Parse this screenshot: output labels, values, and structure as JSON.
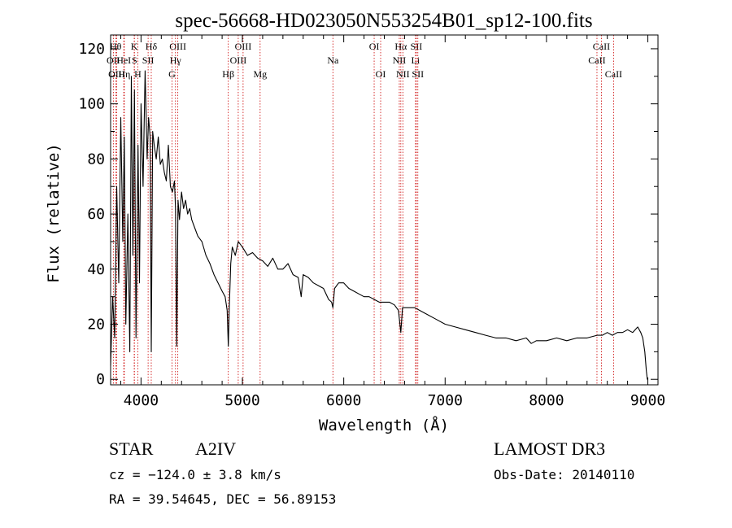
{
  "chart_data": {
    "type": "line",
    "title": "spec-56668-HD023050N553254B01_sp12-100.fits",
    "xlabel": "Wavelength (Å)",
    "ylabel": "Flux (relative)",
    "xlim": [
      3700,
      9100
    ],
    "ylim": [
      -2,
      125
    ],
    "xticks": [
      4000,
      5000,
      6000,
      7000,
      8000,
      9000
    ],
    "yticks": [
      0,
      20,
      40,
      60,
      80,
      100,
      120
    ],
    "grid": false,
    "series": [
      {
        "name": "flux",
        "color": "#000000",
        "x": [
          3700,
          3720,
          3740,
          3760,
          3780,
          3800,
          3820,
          3835,
          3850,
          3870,
          3889,
          3905,
          3920,
          3935,
          3950,
          3970,
          3985,
          4000,
          4020,
          4040,
          4060,
          4075,
          4090,
          4101,
          4115,
          4130,
          4150,
          4170,
          4190,
          4210,
          4230,
          4250,
          4270,
          4290,
          4310,
          4330,
          4340,
          4352,
          4365,
          4380,
          4400,
          4420,
          4440,
          4460,
          4480,
          4500,
          4530,
          4560,
          4600,
          4640,
          4680,
          4720,
          4760,
          4800,
          4830,
          4850,
          4861,
          4870,
          4885,
          4900,
          4930,
          4960,
          5000,
          5050,
          5100,
          5150,
          5200,
          5250,
          5300,
          5350,
          5400,
          5450,
          5500,
          5550,
          5580,
          5600,
          5650,
          5700,
          5750,
          5800,
          5850,
          5880,
          5893,
          5910,
          5950,
          6000,
          6050,
          6100,
          6150,
          6200,
          6250,
          6300,
          6350,
          6400,
          6450,
          6500,
          6540,
          6563,
          6580,
          6620,
          6700,
          6800,
          6900,
          7000,
          7100,
          7200,
          7300,
          7400,
          7500,
          7600,
          7700,
          7800,
          7850,
          7900,
          8000,
          8100,
          8200,
          8300,
          8400,
          8500,
          8550,
          8600,
          8650,
          8700,
          8750,
          8800,
          8850,
          8900,
          8930,
          8950,
          8970,
          8985,
          8995,
          9000
        ],
        "values": [
          5,
          30,
          15,
          70,
          35,
          95,
          50,
          88,
          20,
          60,
          10,
          110,
          45,
          105,
          15,
          85,
          35,
          100,
          70,
          112,
          80,
          95,
          88,
          10,
          90,
          85,
          80,
          88,
          78,
          80,
          75,
          72,
          85,
          70,
          68,
          72,
          62,
          12,
          65,
          58,
          68,
          62,
          65,
          60,
          62,
          58,
          55,
          52,
          50,
          45,
          42,
          38,
          35,
          32,
          30,
          25,
          12,
          25,
          42,
          48,
          45,
          50,
          48,
          45,
          46,
          44,
          43,
          41,
          44,
          40,
          40,
          42,
          38,
          37,
          30,
          38,
          37,
          35,
          34,
          33,
          29,
          28,
          26,
          33,
          35,
          35,
          33,
          32,
          31,
          30,
          30,
          29,
          28,
          28,
          28,
          27,
          25,
          17,
          26,
          26,
          26,
          24,
          22,
          20,
          19,
          18,
          17,
          16,
          15,
          15,
          14,
          15,
          13,
          14,
          14,
          15,
          14,
          15,
          15,
          16,
          16,
          17,
          16,
          17,
          17,
          18,
          17,
          19,
          17,
          15,
          10,
          3,
          0,
          0
        ]
      }
    ],
    "line_markers": [
      {
        "label": "OII",
        "x": 3727,
        "row": 2
      },
      {
        "label": "Hθ",
        "x": 3750,
        "row": 1
      },
      {
        "label": "OIII",
        "x": 3760,
        "row": 3
      },
      {
        "label": "HeI",
        "x": 3830,
        "row": 2
      },
      {
        "label": "Hη",
        "x": 3835,
        "row": 3
      },
      {
        "label": "K",
        "x": 3933,
        "row": 1
      },
      {
        "label": "S",
        "x": 3935,
        "row": 2
      },
      {
        "label": "H",
        "x": 3968,
        "row": 3
      },
      {
        "label": "Hδ",
        "x": 4101,
        "row": 1
      },
      {
        "label": "SII",
        "x": 4070,
        "row": 2
      },
      {
        "label": "OIII",
        "x": 4363,
        "row": 1
      },
      {
        "label": "Hγ",
        "x": 4340,
        "row": 2
      },
      {
        "label": "G",
        "x": 4305,
        "row": 3
      },
      {
        "label": "Hβ",
        "x": 4861,
        "row": 3
      },
      {
        "label": "OIII",
        "x": 5007,
        "row": 1
      },
      {
        "label": "OIII",
        "x": 4959,
        "row": 2
      },
      {
        "label": "Mg",
        "x": 5175,
        "row": 3
      },
      {
        "label": "Na",
        "x": 5893,
        "row": 2
      },
      {
        "label": "OI",
        "x": 6300,
        "row": 1
      },
      {
        "label": "OI",
        "x": 6364,
        "row": 3
      },
      {
        "label": "Hα",
        "x": 6563,
        "row": 1
      },
      {
        "label": "SII",
        "x": 6716,
        "row": 1
      },
      {
        "label": "NII",
        "x": 6548,
        "row": 2
      },
      {
        "label": "Li",
        "x": 6708,
        "row": 2
      },
      {
        "label": "NII",
        "x": 6583,
        "row": 3
      },
      {
        "label": "SII",
        "x": 6731,
        "row": 3
      },
      {
        "label": "CaII",
        "x": 8542,
        "row": 1
      },
      {
        "label": "CaII",
        "x": 8498,
        "row": 2
      },
      {
        "label": "CaII",
        "x": 8662,
        "row": 3
      }
    ],
    "marker_color": "#cc0000"
  },
  "info": {
    "class": "STAR",
    "subclass": "A2IV",
    "survey": "LAMOST DR3",
    "cz": "cz = −124.0 ± 3.8 km/s",
    "obs_date": "Obs-Date: 20140110",
    "coords": "RA =  39.54645, DEC =  56.89153"
  }
}
